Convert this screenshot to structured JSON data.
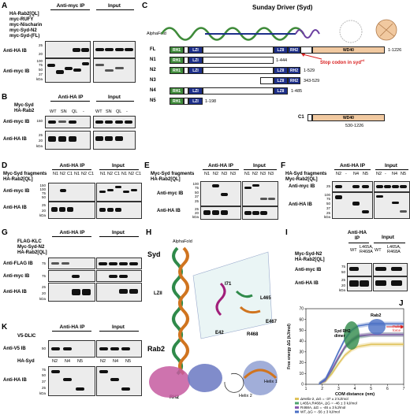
{
  "panels": {
    "A": {
      "label": "A",
      "ip": "Anti-myc IP",
      "input": "Input",
      "rows": [
        "HA-Rab2[QL]",
        "myc-RUFY",
        "myc-Nischarin",
        "myc-Syd-N2",
        "myc-Syd-(FL)"
      ],
      "ib1": "Anti-HA IB",
      "ib2": "Anti-myc IB",
      "mw1": [
        "25",
        "20"
      ],
      "mw2": [
        "100",
        "75",
        "50",
        "37",
        "kDa"
      ]
    },
    "B": {
      "label": "B",
      "ip": "Anti-HA IP",
      "input": "Input",
      "rows": [
        "Myc-Syd",
        "HA-Rab2"
      ],
      "lanes": [
        "WT",
        "SN",
        "QL",
        "-",
        "WT",
        "SN",
        "QL",
        "-"
      ],
      "ib1": "Anti-myc IB",
      "ib2": "Anti-HA IB",
      "mw1": [
        "150"
      ],
      "mw2": [
        "25",
        "20",
        "kDa"
      ]
    },
    "C": {
      "label": "C",
      "title": "Sunday Driver (Syd)",
      "alphafold": "AlphaFold",
      "constructs": [
        {
          "name": "FL",
          "range": "1-1226"
        },
        {
          "name": "N1",
          "range": "1-444"
        },
        {
          "name": "N2",
          "range": "1-529"
        },
        {
          "name": "N3",
          "range": "343-529"
        },
        {
          "name": "N4",
          "range": "1-485"
        },
        {
          "name": "N5",
          "range": "1-198"
        },
        {
          "name": "C1",
          "range": "530-1226"
        }
      ],
      "domains": {
        "rh1": "RH1",
        "lzi": "LZI",
        "lzii": "LZII",
        "rh2": "RH2",
        "wd40": "WD40"
      },
      "stop_codon": "Stop codon in syd",
      "stop_codon_superscript": "z4"
    },
    "D": {
      "label": "D",
      "ip": "Anti-HA IP",
      "input": "Input",
      "rows": [
        "Myc-Syd fragments",
        "HA-Rab2[QL]"
      ],
      "lanes": [
        "N1",
        "N2",
        "C1",
        "N1",
        "N2",
        "C1",
        "N1",
        "N2",
        "C1",
        "N1",
        "N2",
        "C1"
      ],
      "ib1": "Anti-myc IB",
      "ib2": "Anti-HA IB",
      "mw1": [
        "150",
        "100",
        "75",
        "50"
      ],
      "mw2": [
        "25",
        "20",
        "kDa"
      ]
    },
    "E": {
      "label": "E",
      "ip": "Anti-HA IP",
      "input": "Input",
      "rows": [
        "Myc-Syd fragments",
        "HA-Rab2[QL]"
      ],
      "lanes": [
        "N1",
        "N2",
        "N3",
        "N3",
        "N1",
        "N2",
        "N3",
        "N3"
      ],
      "ib1": "Anti-myc IB",
      "ib2": "Anti-HA IB",
      "mw1": [
        "100",
        "75",
        "50",
        "37",
        "25"
      ],
      "mw2": [
        "25",
        "20",
        "kDa"
      ]
    },
    "F": {
      "label": "F",
      "ip": "Anti-HA IP",
      "input": "Input",
      "rows": [
        "HA-Syd fragments",
        "Myc-Rab2[QL]"
      ],
      "lanes": [
        "N2",
        "-",
        "N4",
        "N5",
        "N2",
        "-",
        "N4",
        "N5"
      ],
      "ib1": "Anti-myc IB",
      "ib2": "Anti-HA IB",
      "mw1": [
        "25"
      ],
      "mw2": [
        "100",
        "75",
        "50",
        "37",
        "25",
        "kDa"
      ]
    },
    "G": {
      "label": "G",
      "ip": "Anti-HA IP",
      "input": "Input",
      "rows": [
        "FLAG-KLC",
        "Myc-Syd-N2",
        "HA-Rab2[QL]"
      ],
      "ib1": "Anti-FLAG IB",
      "ib2": "Anti-myc IB",
      "ib3": "Anti-HA IB",
      "mw1": [
        "75"
      ],
      "mw2": [
        "75"
      ],
      "mw3": [
        "25",
        "20",
        "kDa"
      ]
    },
    "H": {
      "label": "H",
      "syd": "Syd",
      "alphafold": "AlphaFold",
      "lzii": "LZII",
      "rab2": "Rab2",
      "rh2": "RH2",
      "helix1": "Helix 1",
      "helix2": "Helix 2",
      "residues": [
        "I71",
        "L465",
        "E42",
        "E467",
        "R468"
      ]
    },
    "I": {
      "label": "I",
      "ip": "Anti-HA IP",
      "input": "Input",
      "rows": [
        "Myc-Syd-N2",
        "HA-Rab2[QL]"
      ],
      "lanes": [
        "WT",
        "L465A, R468A",
        "WT",
        "L465A, R468A"
      ],
      "ib1": "Anti-myc IB",
      "ib2": "Anti-HA IB",
      "mw1": [
        "75",
        "50"
      ],
      "mw2": [
        "25",
        "20",
        "kDa"
      ]
    },
    "J": {
      "label": "J",
      "syd_rh2_dimer": "Syd RH2 dimer",
      "rab2": "Rab2",
      "pulling": "Pulling force"
    },
    "K": {
      "label": "K",
      "ip": "Anti-HA IP",
      "input": "Input",
      "rows": [
        "V5-DLIC",
        "HA-Syd"
      ],
      "lanes": [
        "N2",
        "N4",
        "N5",
        "N2",
        "N4",
        "N5"
      ],
      "ib1": "Anti-V5 IB",
      "ib2": "Anti-HA IB",
      "mw1": [
        "50"
      ],
      "mw2": [
        "75",
        "50",
        "37",
        "25",
        "kDa"
      ]
    }
  },
  "chart_data": {
    "type": "line",
    "xlabel": "COM distance (nm)",
    "ylabel": "Free energy ΔG (kJ/mol)",
    "xlim": [
      1,
      7
    ],
    "ylim": [
      0,
      70
    ],
    "xticks": [
      1,
      2,
      3,
      4,
      5,
      6,
      7
    ],
    "yticks": [
      0,
      10,
      20,
      30,
      40,
      50,
      60,
      70
    ],
    "series": [
      {
        "name": "ΔHelix-2, ΔG = -37 ± 2 kJ/mol",
        "color": "#e0c25a",
        "x": [
          1.8,
          2.2,
          2.6,
          3.0,
          3.4,
          3.8,
          4.2,
          5.0,
          6.0,
          7.0
        ],
        "y": [
          0,
          3,
          10,
          19,
          27,
          32,
          35,
          37,
          37,
          37
        ]
      },
      {
        "name": "L465A,R468A, ΔG = -46 ± 3 kJ/mol",
        "color": "#4fa46f",
        "x": [
          1.8,
          2.2,
          2.6,
          3.0,
          3.4,
          3.8,
          4.2,
          5.0,
          6.0,
          7.0
        ],
        "y": [
          0,
          4,
          13,
          24,
          34,
          40,
          44,
          46,
          46,
          46
        ]
      },
      {
        "name": "R468A, ΔG = -46 ± 3 kJ/mol",
        "color": "#8a5bb0",
        "x": [
          1.8,
          2.2,
          2.6,
          3.0,
          3.4,
          3.8,
          4.2,
          5.0,
          6.0,
          7.0
        ],
        "y": [
          0,
          4,
          14,
          25,
          35,
          41,
          45,
          46,
          46,
          46
        ]
      },
      {
        "name": "WT, ΔG = -56 ± 3 kJ/mol",
        "color": "#4a6fc4",
        "x": [
          1.8,
          2.2,
          2.6,
          3.0,
          3.4,
          3.8,
          4.2,
          5.0,
          6.0,
          7.0
        ],
        "y": [
          0,
          5,
          17,
          30,
          42,
          50,
          54,
          56,
          56,
          56
        ]
      }
    ]
  }
}
